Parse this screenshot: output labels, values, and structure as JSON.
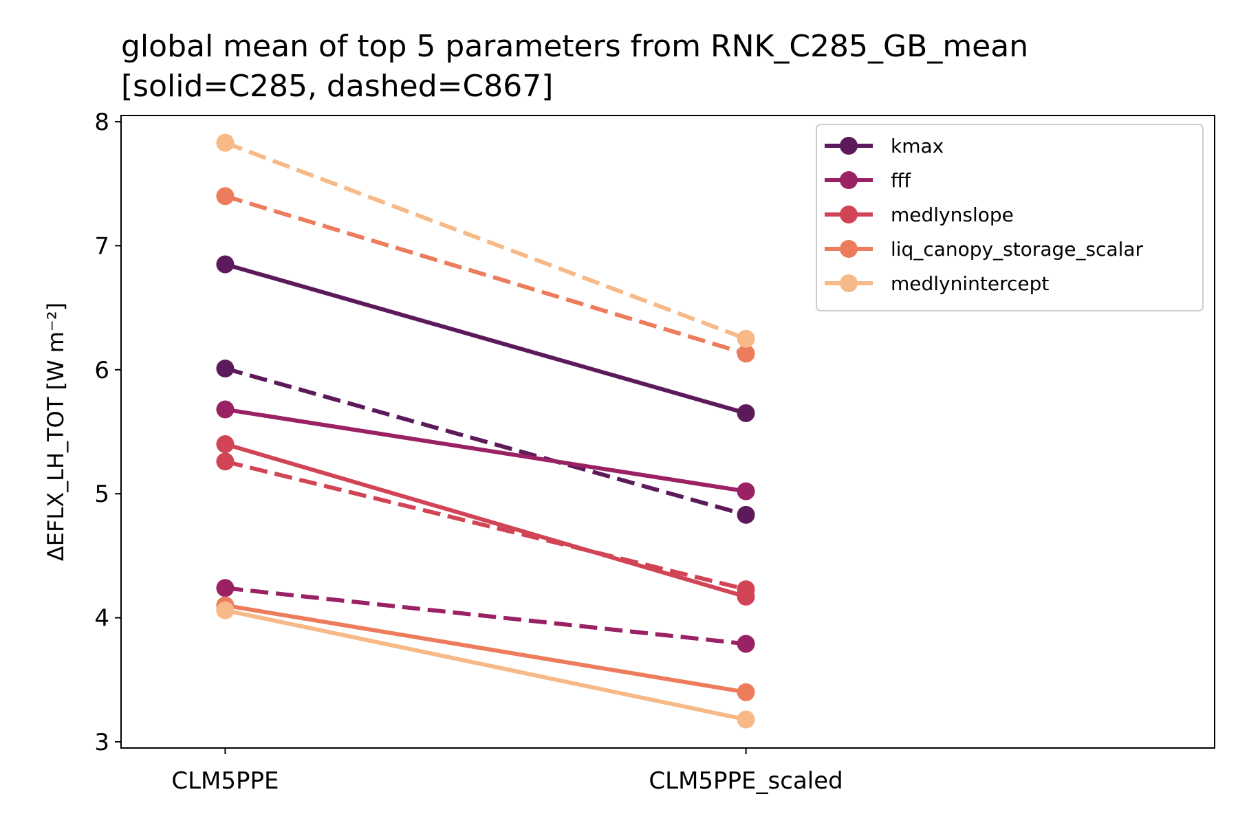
{
  "chart_data": {
    "type": "line",
    "title_line1": "global mean of top 5 parameters from RNK_C285_GB_mean",
    "title_line2": "[solid=C285, dashed=C867]",
    "ylabel": "ΔEFLX_LH_TOT [W m⁻²]",
    "xlabel": "",
    "categories": [
      "CLM5PPE",
      "CLM5PPE_scaled"
    ],
    "xlim": [
      -0.2,
      1.9
    ],
    "ylim": [
      2.95,
      8.05
    ],
    "yticks": [
      3,
      4,
      5,
      6,
      7,
      8
    ],
    "ytick_labels": [
      "3",
      "4",
      "5",
      "6",
      "7",
      "8"
    ],
    "grid": false,
    "legend_position": "top-right",
    "line_styles": {
      "solid": "C285",
      "dashed": "C867"
    },
    "series": [
      {
        "name": "kmax",
        "color": "#5d1a5b",
        "C285": [
          6.85,
          5.65
        ],
        "C867": [
          6.01,
          4.83
        ]
      },
      {
        "name": "fff",
        "color": "#9a2163",
        "C285": [
          5.68,
          5.02
        ],
        "C867": [
          4.24,
          3.79
        ]
      },
      {
        "name": "medlynslope",
        "color": "#d14455",
        "C285": [
          5.4,
          4.17
        ],
        "C867": [
          5.26,
          4.23
        ]
      },
      {
        "name": "liq_canopy_storage_scalar",
        "color": "#ec7c5c",
        "C285": [
          4.1,
          3.4
        ],
        "C867": [
          7.4,
          6.13
        ]
      },
      {
        "name": "medlynintercept",
        "color": "#f6b987",
        "C285": [
          4.06,
          3.18
        ],
        "C867": [
          7.83,
          6.25
        ]
      }
    ]
  }
}
